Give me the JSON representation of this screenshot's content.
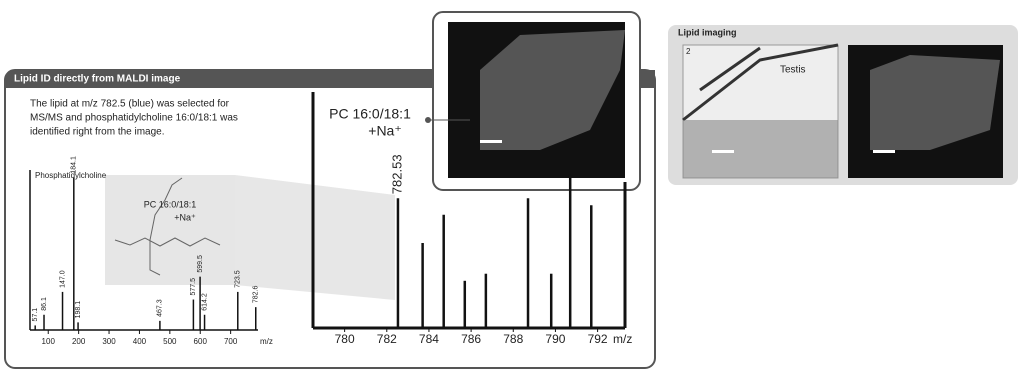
{
  "panel": {
    "title": "Lipid ID directly from MALDI image",
    "description": [
      "The lipid at m/z 782.5 (blue) was selected for",
      "MS/MS and phosphatidylcholine 16:0/18:1 was",
      "identified right from the image."
    ]
  },
  "imaging": {
    "title": "Lipid imaging",
    "image_number": "2",
    "tissue": "Testis"
  },
  "chart_data": [
    {
      "type": "bar",
      "title": "Phosphatidylcholine",
      "annotations": [
        "PC 16:0/18:1",
        "+Na⁺"
      ],
      "xlabel": "m/z",
      "x": [
        57.1,
        86.1,
        147.0,
        184.1,
        198.1,
        467.3,
        577.5,
        599.5,
        614.2,
        723.5,
        782.6
      ],
      "x_labels": [
        "57.1",
        "86.1",
        "147.0",
        "184.1",
        "198.1",
        "467.3",
        "577.5",
        "599.5",
        "614.2",
        "723.5",
        "782.6"
      ],
      "values": [
        3,
        10,
        25,
        100,
        5,
        6,
        20,
        35,
        10,
        25,
        15
      ],
      "xlim": [
        40,
        790
      ],
      "xticks": [
        100,
        200,
        300,
        400,
        500,
        600,
        700
      ],
      "ylim": [
        0,
        105
      ],
      "color": "#111111",
      "grid": false
    },
    {
      "type": "bar",
      "annotations": [
        "PC 16:0/18:1",
        "+Na⁺"
      ],
      "xlabel": "m/z",
      "x": [
        782.53,
        783.7,
        784.7,
        785.7,
        786.7,
        788.7,
        789.8,
        790.7,
        791.7
      ],
      "x_labels": [
        "782.53",
        null,
        null,
        null,
        null,
        null,
        null,
        null,
        null
      ],
      "values": [
        55,
        36,
        48,
        20,
        23,
        55,
        23,
        65,
        52
      ],
      "xlim": [
        778.5,
        793.3
      ],
      "xticks": [
        780,
        782,
        784,
        786,
        788,
        790,
        792
      ],
      "ylim": [
        0,
        100
      ],
      "color": "#111111",
      "grid": false
    }
  ]
}
